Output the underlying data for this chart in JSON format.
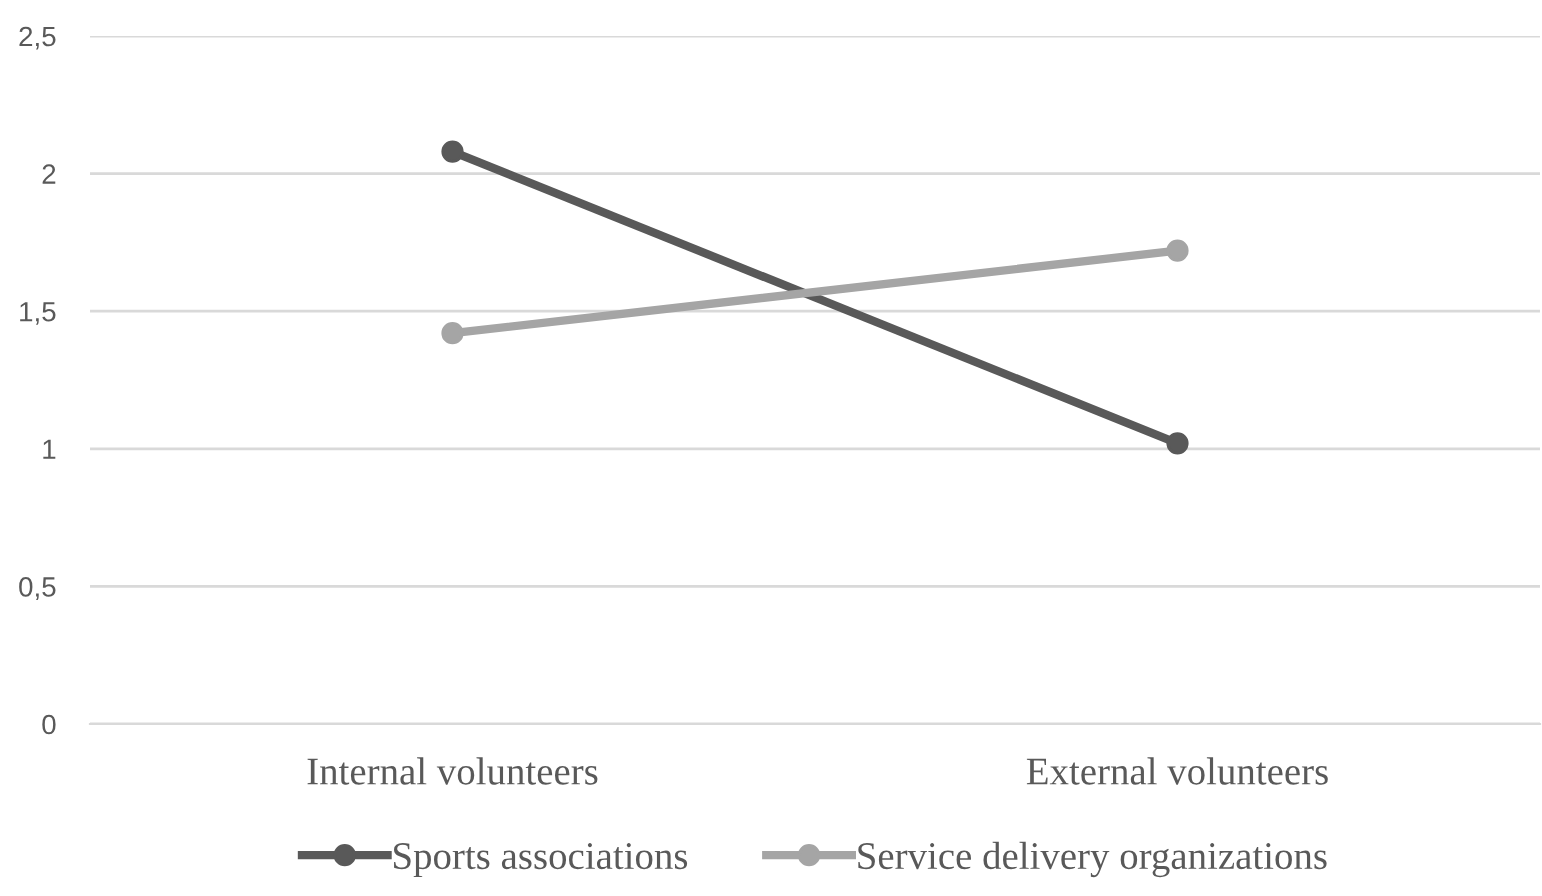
{
  "chart_data": {
    "type": "line",
    "categories": [
      "Internal volunteers",
      "External volunteers"
    ],
    "series": [
      {
        "name": "Sports associations",
        "color": "#595959",
        "values": [
          2.08,
          1.02
        ]
      },
      {
        "name": "Service delivery organizations",
        "color": "#a5a5a5",
        "values": [
          1.42,
          1.72
        ]
      }
    ],
    "ylim": [
      0,
      2.5
    ],
    "yticks": [
      0,
      {
        "value": 0.5,
        "label": "0,5"
      },
      1,
      {
        "value": 1.5,
        "label": "1,5"
      },
      2,
      {
        "value": 2.5,
        "label": "2,5"
      }
    ],
    "grid": "y",
    "legend": "bottom",
    "marker": "circle",
    "line_style": "solid"
  }
}
